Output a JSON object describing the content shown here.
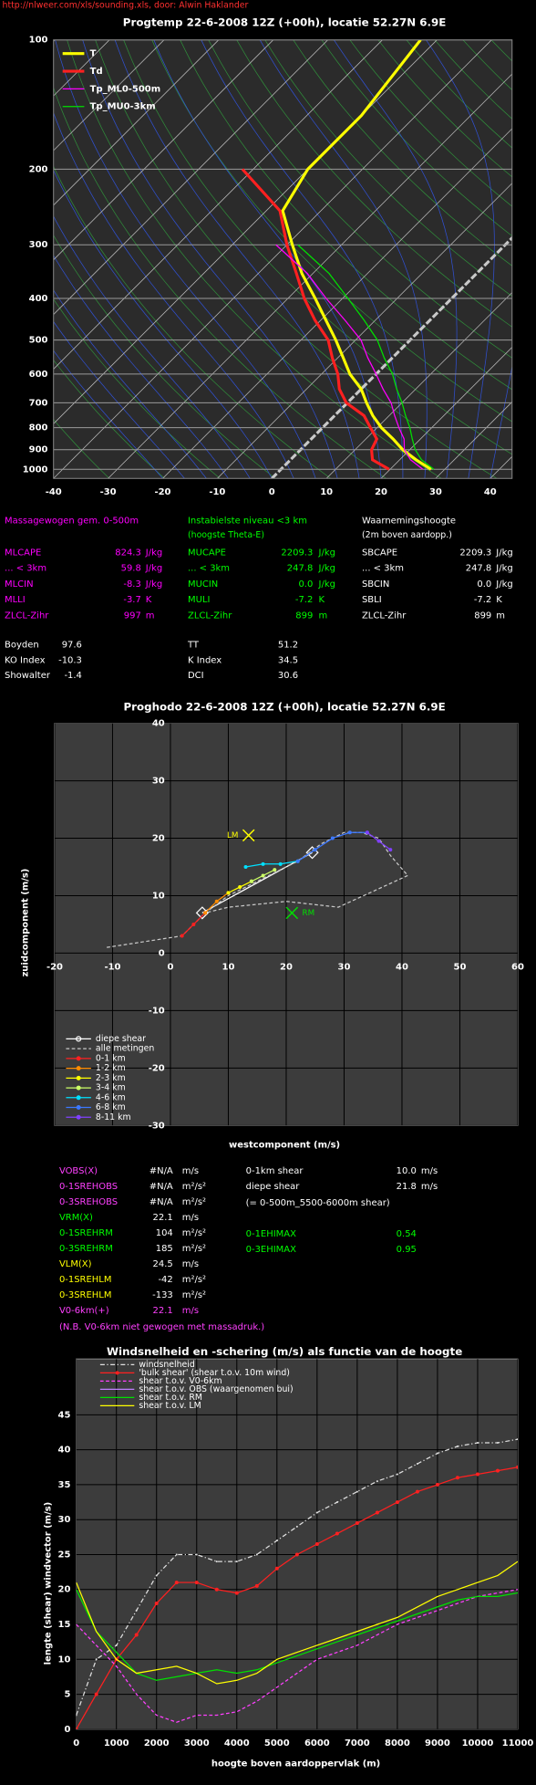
{
  "header": {
    "source": "http://nlweer.com/xls/sounding.xls, door: Alwin Haklander"
  },
  "chart_data": [
    {
      "type": "skewt",
      "title": "Progtemp 22-6-2008 12Z (+00h), locatie 52.27N 6.9E",
      "xlim": [
        -40,
        44
      ],
      "xticks": [
        -40,
        -30,
        -20,
        -10,
        0,
        10,
        20,
        30,
        40
      ],
      "ylim": [
        100,
        1050
      ],
      "yticks": [
        100,
        200,
        300,
        400,
        500,
        600,
        700,
        800,
        900,
        1000
      ],
      "log_scale": true,
      "grid": true,
      "y": [
        1000,
        950,
        900,
        850,
        800,
        750,
        700,
        650,
        600,
        550,
        500,
        450,
        400,
        350,
        300,
        250,
        200,
        150,
        100
      ],
      "series": [
        {
          "name": "T",
          "color": "#ffff00",
          "values": [
            27.5,
            23,
            18.7,
            15,
            10.8,
            7,
            3.5,
            0,
            -4.8,
            -9,
            -13.6,
            -19,
            -25,
            -32,
            -39,
            -47,
            -50,
            -50,
            -53
          ]
        },
        {
          "name": "Td",
          "color": "#ff2020",
          "values": [
            19.8,
            15,
            13,
            12,
            8.8,
            5.4,
            -0.2,
            -4,
            -7,
            -11,
            -15,
            -21,
            -27,
            -33,
            -40,
            -47.5,
            -62,
            null,
            null
          ]
        },
        {
          "name": "Tp_ML0-500m",
          "color": "#ff00ff",
          "values": [
            26,
            22,
            19,
            17,
            14,
            11,
            8,
            4,
            0,
            -4.5,
            -9,
            -15.5,
            -23,
            -31,
            -42,
            null,
            null,
            null,
            null
          ]
        },
        {
          "name": "Tp_MU0-3km",
          "color": "#00e000",
          "values": [
            28,
            24,
            21,
            18.5,
            16,
            13,
            10,
            6.5,
            3,
            -1.5,
            -6,
            -12,
            -19,
            -27,
            -38,
            null,
            null,
            null,
            null
          ]
        }
      ],
      "legend": "top-left"
    },
    {
      "type": "hodograph",
      "title": "Proghodo 22-6-2008 12Z (+00h), locatie 52.27N 6.9E",
      "xlabel": "westcomponent (m/s)",
      "ylabel": "zuidcomponent (m/s)",
      "xlim": [
        -20,
        60
      ],
      "xticks": [
        -20,
        -10,
        0,
        10,
        20,
        30,
        40,
        50,
        60
      ],
      "ylim": [
        -30,
        40
      ],
      "yticks": [
        -30,
        -20,
        -10,
        0,
        10,
        20,
        30,
        40
      ],
      "grid": true,
      "series": [
        {
          "name": "diepe shear",
          "color": "#ffffff",
          "marker": "diamond",
          "x": [
            5.5,
            24.5
          ],
          "y": [
            7,
            17.5
          ]
        },
        {
          "name": "alle metingen",
          "color": "#c8c8c8",
          "dash": true,
          "x": [
            -11,
            2,
            6,
            10,
            14,
            18,
            22,
            26,
            30,
            33,
            36,
            38,
            41,
            29,
            20,
            10,
            6
          ],
          "y": [
            1,
            3,
            7,
            10,
            12,
            14,
            16,
            19,
            21,
            21,
            20,
            17,
            13.5,
            8,
            9,
            8,
            7
          ]
        },
        {
          "name": "0-1 km",
          "color": "#ff2020",
          "marker": "circle",
          "x": [
            2,
            4,
            6
          ],
          "y": [
            3,
            5,
            7
          ]
        },
        {
          "name": "1-2 km",
          "color": "#ff8c00",
          "marker": "circle",
          "x": [
            6,
            8,
            10
          ],
          "y": [
            7,
            9,
            10.5
          ]
        },
        {
          "name": "2-3 km",
          "color": "#ffff00",
          "marker": "circle",
          "x": [
            10,
            12,
            14
          ],
          "y": [
            10.5,
            11.5,
            12.5
          ]
        },
        {
          "name": "3-4 km",
          "color": "#ccff66",
          "marker": "circle",
          "x": [
            14,
            16,
            18
          ],
          "y": [
            12.5,
            13.5,
            14.5
          ]
        },
        {
          "name": "4-6 km",
          "color": "#00e0ff",
          "marker": "circle",
          "x": [
            13,
            16,
            19,
            22
          ],
          "y": [
            15,
            15.5,
            15.5,
            16
          ]
        },
        {
          "name": "6-8 km",
          "color": "#3c78ff",
          "marker": "circle",
          "x": [
            22,
            25,
            28,
            31,
            34
          ],
          "y": [
            16,
            18,
            20,
            21,
            21
          ]
        },
        {
          "name": "8-11 km",
          "color": "#8040ff",
          "marker": "circle",
          "x": [
            34,
            36,
            38
          ],
          "y": [
            21,
            19.5,
            18
          ]
        }
      ],
      "annotations": [
        {
          "text": "LM",
          "x": 13.5,
          "y": 20.5,
          "color": "#ffff00",
          "side": "left"
        },
        {
          "text": "RM",
          "x": 21,
          "y": 7,
          "color": "#00e000",
          "side": "right"
        }
      ],
      "legend": "bottom-left"
    },
    {
      "type": "line",
      "title": "Windsnelheid en -schering (m/s) als functie van de hoogte",
      "xlabel": "hoogte boven aardoppervlak (m)",
      "ylabel": "lengte (shear) windvector (m/s)",
      "xlim": [
        0,
        11000
      ],
      "xticks": [
        0,
        1000,
        2000,
        3000,
        4000,
        5000,
        6000,
        7000,
        8000,
        9000,
        10000,
        11000
      ],
      "ylim": [
        0,
        53
      ],
      "yticks": [
        0,
        5,
        10,
        15,
        20,
        25,
        30,
        35,
        40,
        45
      ],
      "grid": true,
      "x": [
        0,
        500,
        1000,
        1500,
        2000,
        2500,
        3000,
        3500,
        4000,
        4500,
        5000,
        5500,
        6000,
        6500,
        7000,
        7500,
        8000,
        8500,
        9000,
        9500,
        10000,
        10500,
        11000
      ],
      "series": [
        {
          "name": "windsnelheid",
          "color": "#e0e0e0",
          "dash": "4 2 1 2",
          "marker": "dot",
          "values": [
            2,
            10,
            12,
            17,
            22,
            25,
            25,
            24,
            24,
            25,
            27,
            29,
            31,
            32.5,
            34,
            35.5,
            36.5,
            38,
            39.5,
            40.5,
            41,
            41,
            41.5
          ]
        },
        {
          "name": "'bulk shear' (shear t.o.v. 10m wind)",
          "color": "#ff2020",
          "marker": "circle",
          "values": [
            0,
            5,
            10,
            13.5,
            18,
            21,
            21,
            20,
            19.5,
            20.5,
            23,
            25,
            26.5,
            28,
            29.5,
            31,
            32.5,
            34,
            35,
            36,
            36.5,
            37,
            37.5
          ]
        },
        {
          "name": "shear t.o.v. V0-6km",
          "color": "#ff40ff",
          "dash": "3 2",
          "values": [
            15,
            12,
            9,
            5,
            2,
            1,
            2,
            2,
            2.5,
            4,
            6,
            8,
            10,
            11,
            12,
            13.5,
            15,
            16,
            17,
            18,
            19,
            19.5,
            20
          ]
        },
        {
          "name": "shear t.o.v. OBS (waargenomen bui)",
          "color": "#c080ff",
          "values": [
            null,
            null,
            null,
            null,
            null,
            null,
            null,
            null,
            null,
            null,
            null,
            null,
            null,
            null,
            null,
            null,
            null,
            null,
            null,
            null,
            null,
            null,
            null
          ]
        },
        {
          "name": "shear t.o.v. RM",
          "color": "#00e000",
          "values": [
            20,
            14,
            11,
            8,
            7,
            7.5,
            8,
            8.5,
            8,
            8.5,
            9.5,
            10.5,
            11.5,
            12.5,
            13.5,
            14.5,
            15.5,
            16.5,
            17.5,
            18.5,
            19,
            19,
            19.5
          ]
        },
        {
          "name": "shear t.o.v. LM",
          "color": "#ffff00",
          "values": [
            21,
            14,
            10,
            8,
            8.5,
            9,
            8,
            6.5,
            7,
            8,
            10,
            11,
            12,
            13,
            14,
            15,
            16,
            17.5,
            19,
            20,
            21,
            22,
            24
          ]
        }
      ],
      "legend": "top-left"
    }
  ],
  "params": {
    "columns": [
      {
        "title": "Massagewogen gem. 0-500m",
        "color": "#ff00ff",
        "rows": [
          [
            "MLCAPE",
            "824.3",
            "J/kg"
          ],
          [
            "... < 3km",
            "59.8",
            "J/kg"
          ],
          [
            "MLCIN",
            "-8.3",
            "J/kg"
          ],
          [
            "MLLI",
            "-3.7",
            "K"
          ],
          [
            "ZLCL-Zihr",
            "997",
            "m"
          ]
        ]
      },
      {
        "title": "Instabielste niveau <3 km",
        "subtitle": "(hoogste Theta-E)",
        "color": "#00ff00",
        "rows": [
          [
            "MUCAPE",
            "2209.3",
            "J/kg"
          ],
          [
            "... < 3km",
            "247.8",
            "J/kg"
          ],
          [
            "MUCIN",
            "0.0",
            "J/kg"
          ],
          [
            "MULI",
            "-7.2",
            "K"
          ],
          [
            "ZLCL-Zihr",
            "899",
            "m"
          ]
        ]
      },
      {
        "title": "Waarnemingshoogte",
        "subtitle": "(2m boven aardopp.)",
        "color": "#ffffff",
        "rows": [
          [
            "SBCAPE",
            "2209.3",
            "J/kg"
          ],
          [
            "... < 3km",
            "247.8",
            "J/kg"
          ],
          [
            "SBCIN",
            "0.0",
            "J/kg"
          ],
          [
            "SBLI",
            "-7.2",
            "K"
          ],
          [
            "ZLCL-Zihr",
            "899",
            "m"
          ]
        ]
      }
    ],
    "indices": [
      [
        [
          "Boyden",
          "97.6"
        ],
        [
          "KO Index",
          "-10.3"
        ],
        [
          "Showalter",
          "-1.4"
        ]
      ],
      [
        [
          "TT",
          "51.2"
        ],
        [
          "K Index",
          "34.5"
        ],
        [
          "DCI",
          "30.6"
        ]
      ]
    ]
  },
  "hodo_params": {
    "rows": [
      {
        "label": "VOBS(X)",
        "value": "#N/A",
        "unit": "m/s",
        "color": "#ff40ff"
      },
      {
        "label": "0-1SREHOBS",
        "value": "#N/A",
        "unit": "m²/s²",
        "color": "#ff40ff"
      },
      {
        "label": "0-3SREHOBS",
        "value": "#N/A",
        "unit": "m²/s²",
        "color": "#ff40ff"
      },
      {
        "label": "VRM(X)",
        "value": "22.1",
        "unit": "m/s",
        "color": "#00ff00"
      },
      {
        "label": "0-1SREHRM",
        "value": "104",
        "unit": "m²/s²",
        "color": "#00ff00"
      },
      {
        "label": "0-3SREHRM",
        "value": "185",
        "unit": "m²/s²",
        "color": "#00ff00"
      },
      {
        "label": "VLM(X)",
        "value": "24.5",
        "unit": "m/s",
        "color": "#ffff00"
      },
      {
        "label": "0-1SREHLM",
        "value": "-42",
        "unit": "m²/s²",
        "color": "#ffff00"
      },
      {
        "label": "0-3SREHLM",
        "value": "-133",
        "unit": "m²/s²",
        "color": "#ffff00"
      },
      {
        "label": "V0-6km(+)",
        "value": "22.1",
        "unit": "m/s",
        "color": "#ff40ff"
      }
    ],
    "note": "(N.B. V0-6km niet gewogen met massadruk.)",
    "shear": [
      [
        "0-1km shear",
        "10.0",
        "m/s"
      ],
      [
        "diepe shear",
        "21.8",
        "m/s"
      ]
    ],
    "shear_note": "(= 0-500m_5500-6000m shear)",
    "ehi": [
      [
        "0-1EHIMAX",
        "0.54"
      ],
      [
        "0-3EHIMAX",
        "0.95"
      ]
    ]
  }
}
